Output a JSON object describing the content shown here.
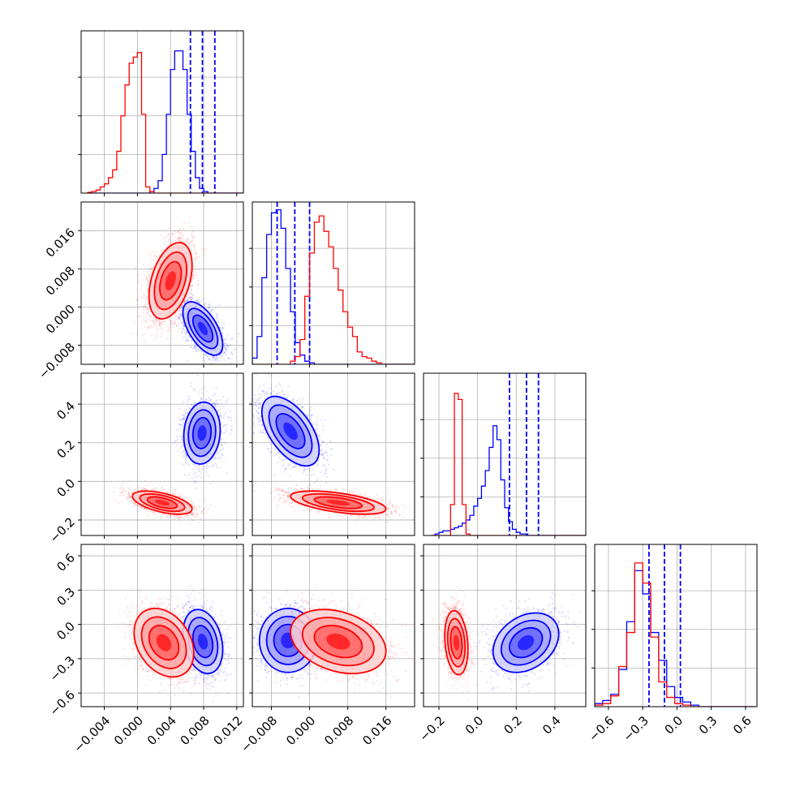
{
  "figure": {
    "background": "#ffffff",
    "grid": true,
    "legend": "none",
    "colors": {
      "series_a": "#0000ff",
      "series_b": "#ff0000",
      "grid": "#b0b0b0",
      "axes": "#000000"
    }
  },
  "chart_data": {
    "type": "corner",
    "parameters": [
      {
        "range": [
          -0.0068,
          0.0128
        ],
        "ticks": [
          -0.004,
          0.0,
          0.004,
          0.008,
          0.012
        ],
        "tick_labels": [
          "−0.004",
          "0.000",
          "0.004",
          "0.008",
          "0.012"
        ]
      },
      {
        "range": [
          -0.012,
          0.022
        ],
        "ticks": [
          -0.008,
          0.0,
          0.008,
          0.016
        ],
        "tick_labels": [
          "−0.008",
          "0.000",
          "0.008",
          "0.016"
        ]
      },
      {
        "range": [
          -0.28,
          0.56
        ],
        "ticks": [
          -0.2,
          0.0,
          0.2,
          0.4
        ],
        "tick_labels": [
          "−0.2",
          "0.0",
          "0.2",
          "0.4"
        ]
      },
      {
        "range": [
          -0.72,
          0.7
        ],
        "ticks": [
          -0.6,
          -0.3,
          0.0,
          0.3,
          0.6
        ],
        "tick_labels": [
          "−0.6",
          "−0.3",
          "0.0",
          "0.3",
          "0.6"
        ]
      }
    ],
    "series": [
      {
        "color": "#0000ff",
        "quantiles": [
          [
            0.0064,
            0.00785,
            0.00935
          ],
          [
            -0.0068,
            -0.0031,
            0.0
          ],
          [
            0.165,
            0.253,
            0.315
          ],
          [
            -0.245,
            -0.11,
            0.03
          ]
        ],
        "hist1d": [
          {
            "start": -0.006,
            "width": 0.0005,
            "values": [
              0,
              0,
              0,
              0,
              0,
              0,
              0,
              0,
              0,
              0,
              0,
              0,
              0,
              0,
              0,
              0.01,
              0.03,
              0.08,
              0.25,
              0.51,
              0.8,
              0.92,
              0.92,
              0.8,
              0.51,
              0.27,
              0.1,
              0.03,
              0.01,
              0,
              0,
              0,
              0,
              0,
              0,
              0,
              0,
              0
            ]
          },
          {
            "start": -0.012,
            "width": 0.001,
            "values": [
              0.04,
              0.18,
              0.56,
              0.84,
              0.98,
              1.0,
              0.88,
              0.62,
              0.34,
              0.14,
              0.06,
              0.02,
              0.01,
              0,
              0,
              0,
              0,
              0,
              0,
              0,
              0,
              0,
              0,
              0,
              0,
              0,
              0,
              0,
              0,
              0,
              0,
              0,
              0,
              0
            ]
          },
          {
            "start": -0.24,
            "width": 0.02,
            "values": [
              0,
              0.01,
              0.02,
              0.03,
              0.03,
              0.04,
              0.05,
              0.06,
              0.08,
              0.1,
              0.13,
              0.19,
              0.24,
              0.32,
              0.42,
              0.57,
              0.71,
              0.62,
              0.36,
              0.18,
              0.09,
              0.04,
              0.02,
              0.01,
              0.01,
              0,
              0,
              0,
              0,
              0,
              0,
              0,
              0,
              0,
              0,
              0,
              0,
              0,
              0,
              0
            ]
          },
          {
            "start": -0.72,
            "width": 0.07,
            "values": [
              0.02,
              0.04,
              0.08,
              0.24,
              0.55,
              0.88,
              0.73,
              0.48,
              0.3,
              0.13,
              0.06,
              0.03,
              0.01,
              0,
              0,
              0,
              0,
              0,
              0,
              0
            ]
          }
        ],
        "samples": [
          {
            "pair": [
              0,
              1
            ],
            "mean": [
              0.0079,
              -0.0045
            ],
            "sd": [
              0.0012,
              0.0028
            ],
            "rho": -0.6,
            "n": 2400
          },
          {
            "pair": [
              0,
              2
            ],
            "mean": [
              0.0078,
              0.25
            ],
            "sd": [
              0.0011,
              0.08
            ],
            "rho": 0.1,
            "n": 2000
          },
          {
            "pair": [
              0,
              3
            ],
            "mean": [
              0.0079,
              -0.15
            ],
            "sd": [
              0.0012,
              0.14
            ],
            "rho": -0.25,
            "n": 2000
          },
          {
            "pair": [
              1,
              2
            ],
            "mean": [
              -0.004,
              0.26
            ],
            "sd": [
              0.003,
              0.09
            ],
            "rho": -0.55,
            "n": 2000
          },
          {
            "pair": [
              1,
              3
            ],
            "mean": [
              -0.0045,
              -0.14
            ],
            "sd": [
              0.003,
              0.14
            ],
            "rho": 0.0,
            "n": 2000
          },
          {
            "pair": [
              2,
              3
            ],
            "mean": [
              0.25,
              -0.16
            ],
            "sd": [
              0.085,
              0.13
            ],
            "rho": 0.3,
            "n": 2000
          }
        ]
      },
      {
        "color": "#ff0000",
        "quantiles": [],
        "hist1d": [
          {
            "start": -0.006,
            "width": 0.0005,
            "values": [
              0.005,
              0.01,
              0.02,
              0.04,
              0.06,
              0.1,
              0.15,
              0.27,
              0.5,
              0.7,
              0.84,
              0.88,
              0.91,
              0.51,
              0.04,
              0.01,
              0,
              0,
              0,
              0,
              0,
              0,
              0,
              0,
              0,
              0,
              0,
              0,
              0,
              0,
              0,
              0,
              0,
              0,
              0,
              0,
              0,
              0
            ]
          },
          {
            "start": -0.012,
            "width": 0.001,
            "values": [
              0,
              0,
              0,
              0,
              0,
              0,
              0,
              0,
              0.02,
              0.05,
              0.16,
              0.44,
              0.72,
              0.92,
              0.96,
              0.86,
              0.76,
              0.62,
              0.48,
              0.34,
              0.24,
              0.18,
              0.08,
              0.05,
              0.04,
              0.02,
              0.01,
              0,
              0,
              0,
              0,
              0,
              0,
              0
            ]
          },
          {
            "start": -0.24,
            "width": 0.02,
            "values": [
              0,
              0,
              0,
              0,
              0,
              0.2,
              0.92,
              0.88,
              0.2,
              0.01,
              0,
              0,
              0,
              0,
              0,
              0,
              0,
              0,
              0,
              0,
              0,
              0,
              0,
              0,
              0,
              0,
              0,
              0,
              0,
              0,
              0,
              0,
              0,
              0,
              0,
              0,
              0,
              0,
              0,
              0
            ]
          },
          {
            "start": -0.72,
            "width": 0.07,
            "values": [
              0.01,
              0.02,
              0.07,
              0.26,
              0.48,
              0.93,
              0.8,
              0.45,
              0.16,
              0.06,
              0.02,
              0.01,
              0,
              0,
              0,
              0,
              0,
              0,
              0,
              0
            ]
          }
        ],
        "samples": [
          {
            "pair": [
              0,
              1
            ],
            "mean": [
              0.004,
              0.0055
            ],
            "sd": [
              0.0013,
              0.004
            ],
            "rho": 0.4,
            "n": 2500
          },
          {
            "pair": [
              0,
              2
            ],
            "mean": [
              0.003,
              -0.11
            ],
            "sd": [
              0.0018,
              0.03
            ],
            "rho": -0.55,
            "n": 2000
          },
          {
            "pair": [
              0,
              3
            ],
            "mean": [
              0.0032,
              -0.16
            ],
            "sd": [
              0.0018,
              0.15
            ],
            "rho": -0.3,
            "n": 2000
          },
          {
            "pair": [
              1,
              2
            ],
            "mean": [
              0.006,
              -0.11
            ],
            "sd": [
              0.005,
              0.03
            ],
            "rho": -0.55,
            "n": 2000
          },
          {
            "pair": [
              1,
              3
            ],
            "mean": [
              0.006,
              -0.15
            ],
            "sd": [
              0.005,
              0.14
            ],
            "rho": -0.3,
            "n": 2000
          },
          {
            "pair": [
              2,
              3
            ],
            "mean": [
              -0.11,
              -0.16
            ],
            "sd": [
              0.03,
              0.14
            ],
            "rho": -0.2,
            "n": 2000
          }
        ]
      }
    ]
  }
}
